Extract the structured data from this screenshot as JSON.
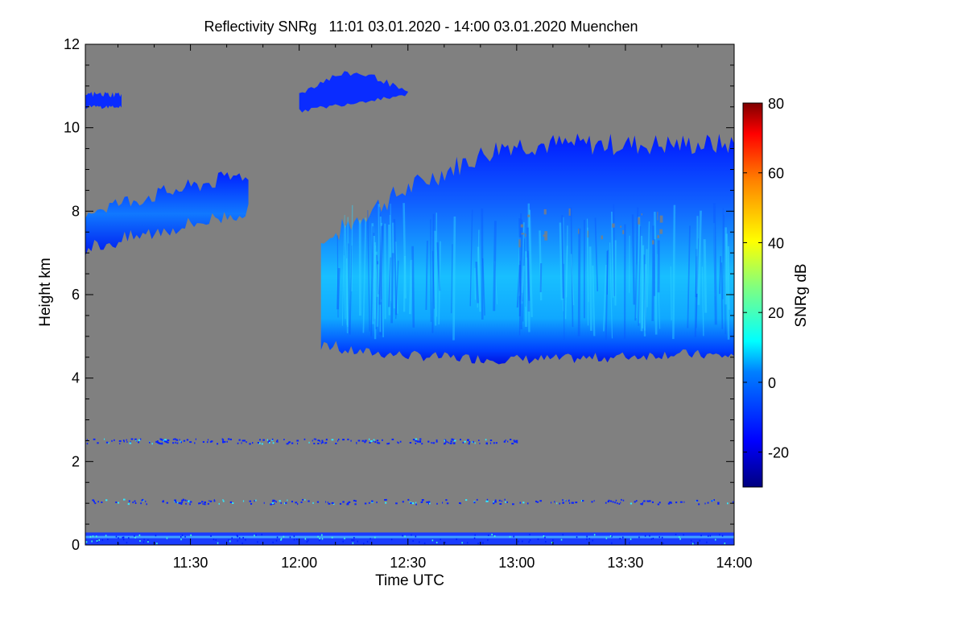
{
  "chart_data": {
    "type": "heatmap",
    "title": "Reflectivity SNRg   11:01 03.01.2020 - 14:00 03.01.2020 Muenchen",
    "xlabel": "Time UTC",
    "ylabel": "Height km",
    "x_range": [
      "11:01",
      "14:00"
    ],
    "x_ticks": [
      "11:30",
      "12:00",
      "12:30",
      "13:00",
      "13:30",
      "14:00"
    ],
    "ylim": [
      0,
      12
    ],
    "y_ticks": [
      "0",
      "2",
      "4",
      "6",
      "8",
      "10",
      "12"
    ],
    "background_color": "#808080",
    "colorbar": {
      "label": "SNRg dB",
      "range": [
        -30,
        80
      ],
      "ticks": [
        "-20",
        "0",
        "20",
        "40",
        "60",
        "80"
      ],
      "colormap": "jet"
    },
    "features": [
      {
        "name": "main cloud deck",
        "time": [
          "12:06",
          "14:00"
        ],
        "base_km": [
          4.3,
          4.7
        ],
        "top_km": [
          7.0,
          9.6
        ],
        "snr_db": [
          -25,
          5
        ]
      },
      {
        "name": "upper cloud left",
        "time": [
          "11:01",
          "11:46"
        ],
        "base_km": [
          7.1,
          8.0
        ],
        "top_km": [
          8.0,
          8.9
        ],
        "snr_db": [
          -25,
          -5
        ]
      },
      {
        "name": "cirrus upper",
        "time": [
          "12:00",
          "12:30"
        ],
        "base_km": [
          10.4,
          10.8
        ],
        "top_km": [
          10.8,
          11.3
        ],
        "snr_db": [
          -25,
          -15
        ]
      },
      {
        "name": "cirrus thin",
        "time": [
          "11:01",
          "11:11"
        ],
        "base_km": [
          10.5,
          10.5
        ],
        "top_km": [
          10.8,
          10.8
        ],
        "snr_db": [
          -25,
          -15
        ]
      },
      {
        "name": "near-surface clutter",
        "time": [
          "11:01",
          "14:00"
        ],
        "base_km": [
          0,
          0
        ],
        "top_km": [
          0.3,
          0.3
        ],
        "snr_db": [
          -25,
          10
        ]
      },
      {
        "name": "speckle layer",
        "time": [
          "11:01",
          "14:00"
        ],
        "base_km": [
          1.0,
          1.0
        ],
        "top_km": [
          1.1,
          1.1
        ],
        "snr_db": [
          -20,
          10
        ]
      },
      {
        "name": "speckle layer",
        "time": [
          "11:01",
          "13:00"
        ],
        "base_km": [
          2.45,
          2.45
        ],
        "top_km": [
          2.55,
          2.55
        ],
        "snr_db": [
          -25,
          -15
        ]
      }
    ]
  }
}
